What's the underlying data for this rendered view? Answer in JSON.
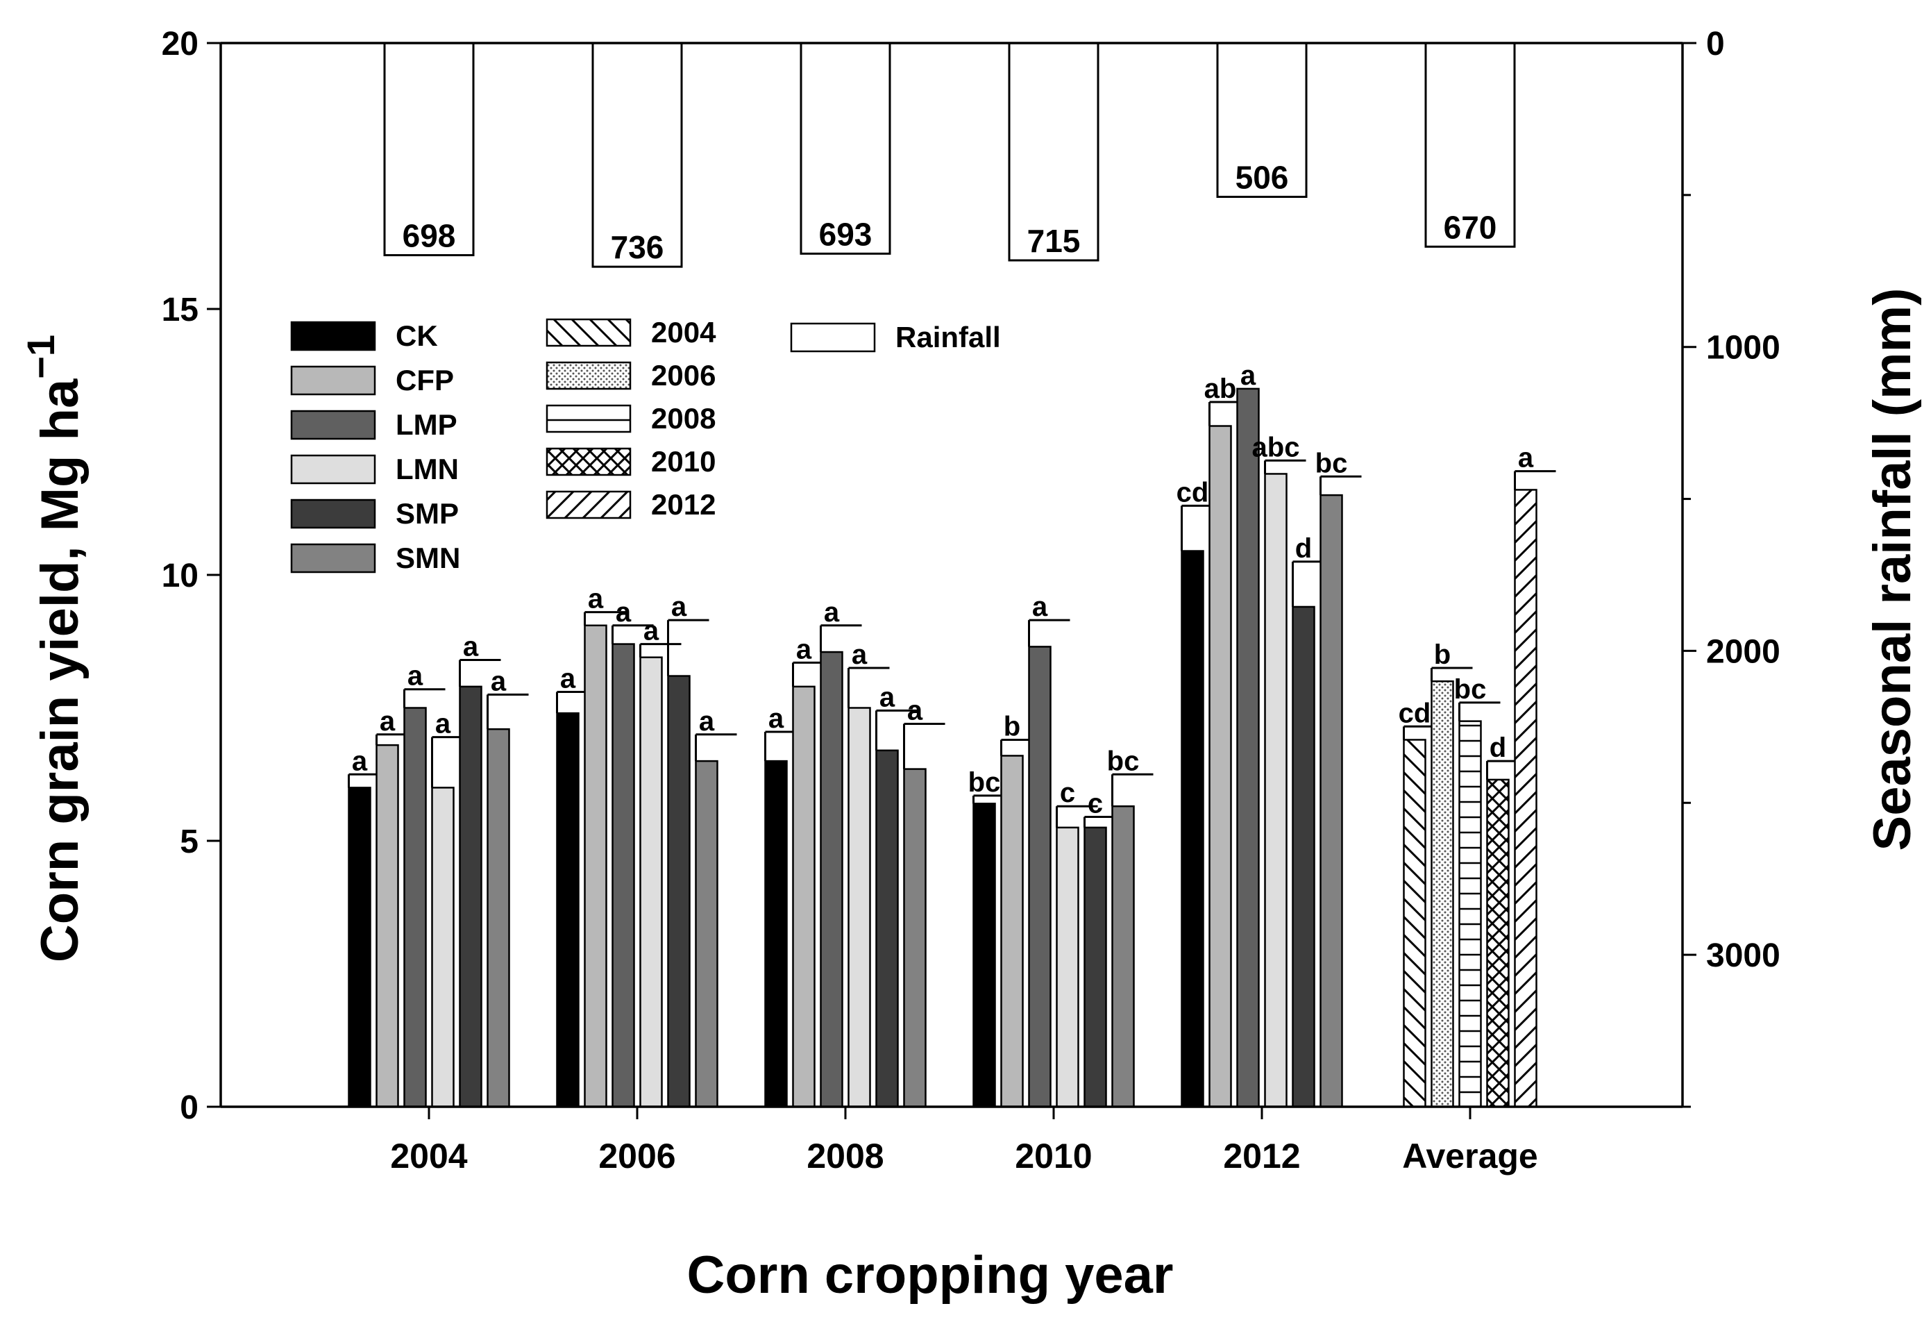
{
  "chart_data": {
    "type": "bar",
    "xlabel": "Corn cropping year",
    "ylabel": "Corn grain yield, Mg ha",
    "ylabel_sup": "−1",
    "y2label": "Seasonal rainfall (mm)",
    "ylim": [
      0,
      20
    ],
    "yticks": [
      "0",
      "5",
      "10",
      "15",
      "20"
    ],
    "y2lim": [
      0,
      3500
    ],
    "y2ticks": [
      "0",
      "1000",
      "2000",
      "3000"
    ],
    "categories": [
      "2004",
      "2006",
      "2008",
      "2010",
      "2012",
      "Average"
    ],
    "treatments": [
      "CK",
      "CFP",
      "LMP",
      "LMN",
      "SMP",
      "SMN"
    ],
    "treatment_colors": [
      "#000000",
      "#b8b8b8",
      "#606060",
      "#dedede",
      "#3c3c3c",
      "#828282"
    ],
    "yield": [
      {
        "year": "2004",
        "values": [
          6.0,
          6.8,
          7.5,
          6.0,
          7.9,
          7.1
        ],
        "errors": [
          0.25,
          0.2,
          0.35,
          0.95,
          0.5,
          0.65
        ],
        "letters": [
          "a",
          "a",
          "a",
          "a",
          "a",
          "a"
        ]
      },
      {
        "year": "2006",
        "values": [
          7.4,
          9.05,
          8.7,
          8.45,
          8.1,
          6.5
        ],
        "errors": [
          0.4,
          0.25,
          0.35,
          0.25,
          1.05,
          0.5
        ],
        "letters": [
          "a",
          "a",
          "a",
          "a",
          "a",
          "a"
        ]
      },
      {
        "year": "2008",
        "values": [
          6.5,
          7.9,
          8.55,
          7.5,
          6.7,
          6.35
        ],
        "errors": [
          0.55,
          0.45,
          0.5,
          0.75,
          0.75,
          0.85
        ],
        "letters": [
          "a",
          "a",
          "a",
          "a",
          "a",
          "a"
        ]
      },
      {
        "year": "2010",
        "values": [
          5.7,
          6.6,
          8.65,
          5.25,
          5.25,
          5.65
        ],
        "errors": [
          0.15,
          0.3,
          0.5,
          0.4,
          0.2,
          0.6
        ],
        "letters": [
          "bc",
          "b",
          "a",
          "c",
          "c",
          "bc"
        ]
      },
      {
        "year": "2012",
        "values": [
          10.45,
          12.8,
          13.5,
          11.9,
          9.4,
          11.5
        ],
        "errors": [
          0.85,
          0.45,
          0.0,
          0.25,
          0.85,
          0.35
        ],
        "letters": [
          "cd",
          "ab",
          "a",
          "abc",
          "d",
          "bc"
        ]
      }
    ],
    "average": {
      "series": [
        "2004",
        "2006",
        "2008",
        "2010",
        "2012"
      ],
      "values": [
        6.9,
        8.0,
        7.25,
        6.15,
        11.6
      ],
      "errors": [
        0.25,
        0.25,
        0.35,
        0.35,
        0.35
      ],
      "letters": [
        "cd",
        "b",
        "bc",
        "d",
        "a"
      ],
      "patterns": [
        "back-diagonal",
        "dots",
        "horizontal-lines",
        "crosshatch",
        "forward-diagonal"
      ]
    },
    "rainfall": {
      "name": "Rainfall",
      "values": [
        698,
        736,
        693,
        715,
        506,
        670
      ],
      "labels": [
        "698",
        "736",
        "693",
        "715",
        "506",
        "670"
      ]
    },
    "legend": {
      "treatments": [
        "CK",
        "CFP",
        "LMP",
        "LMN",
        "SMP",
        "SMN"
      ],
      "years": [
        "2004",
        "2006",
        "2008",
        "2010",
        "2012"
      ],
      "rainfall": "Rainfall"
    }
  }
}
